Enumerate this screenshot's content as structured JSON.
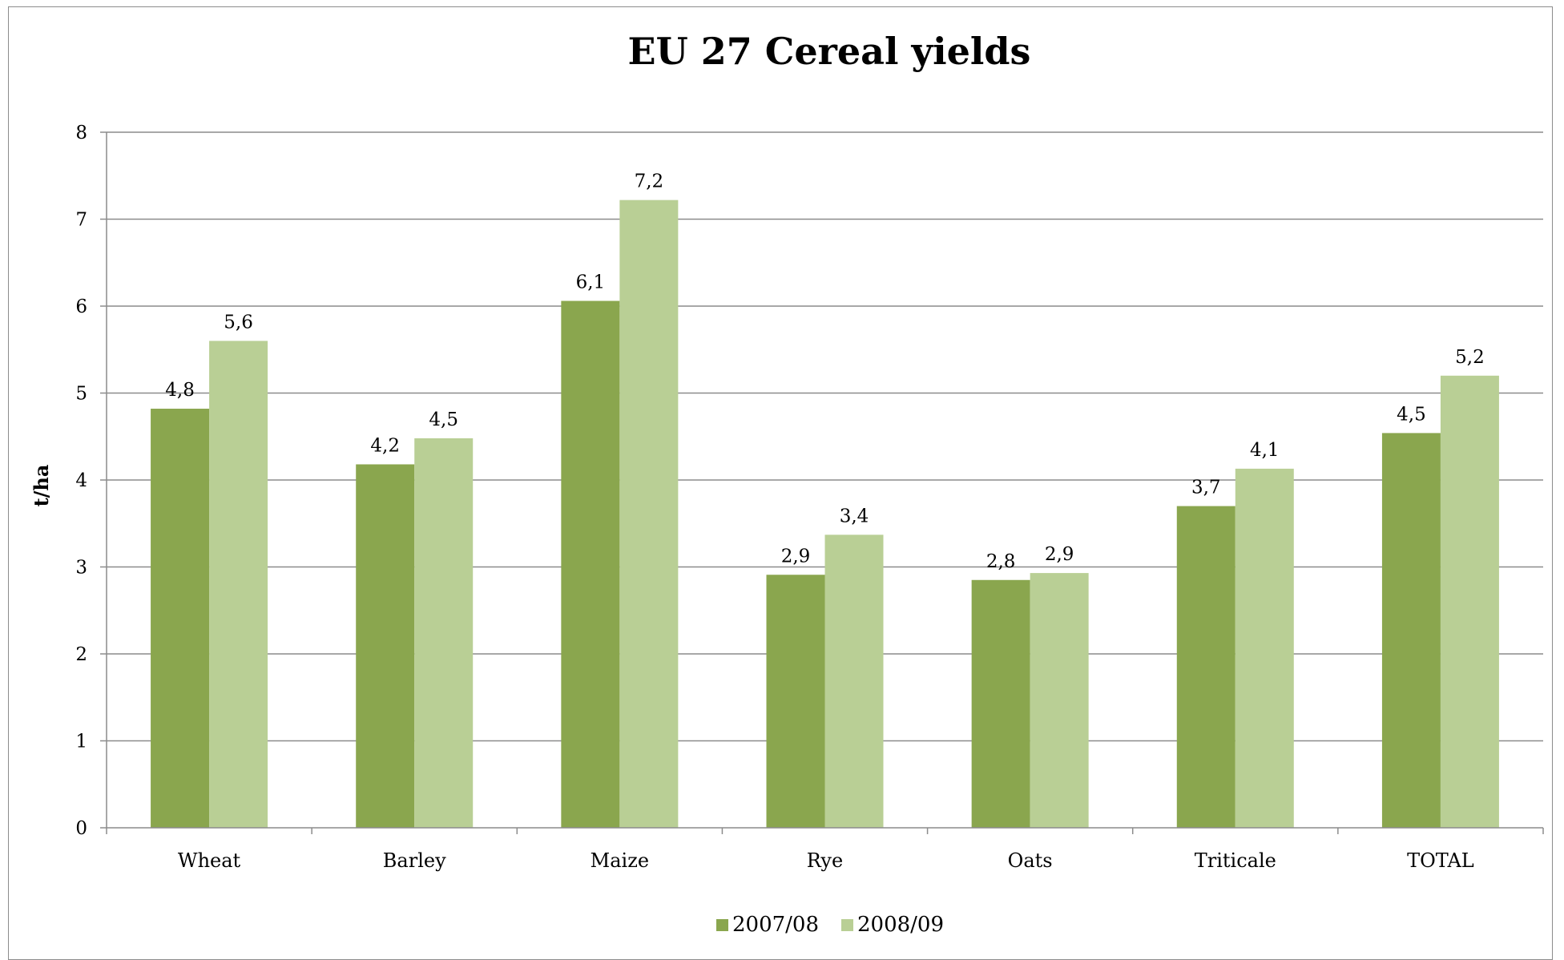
{
  "chart_data": {
    "type": "bar",
    "title": "EU 27 Cereal yields",
    "ylabel": "t/ha",
    "xlabel": "",
    "ylim": [
      0,
      8
    ],
    "yticks": [
      0,
      1,
      2,
      3,
      4,
      5,
      6,
      7,
      8
    ],
    "grid": true,
    "legend_position": "bottom",
    "categories": [
      "Wheat",
      "Barley",
      "Maize",
      "Rye",
      "Oats",
      "Triticale",
      "TOTAL"
    ],
    "series": [
      {
        "name": "2007/08",
        "color": "#8aa64e",
        "values": [
          4.82,
          4.18,
          6.06,
          2.91,
          2.85,
          3.7,
          4.54
        ],
        "labels": [
          "4,8",
          "4,2",
          "6,1",
          "2,9",
          "2,8",
          "3,7",
          "4,5"
        ]
      },
      {
        "name": "2008/09",
        "color": "#b9cf95",
        "values": [
          5.6,
          4.48,
          7.22,
          3.37,
          2.93,
          4.13,
          5.2
        ],
        "labels": [
          "5,6",
          "4,5",
          "7,2",
          "3,4",
          "2,9",
          "4,1",
          "5,2"
        ]
      }
    ]
  }
}
